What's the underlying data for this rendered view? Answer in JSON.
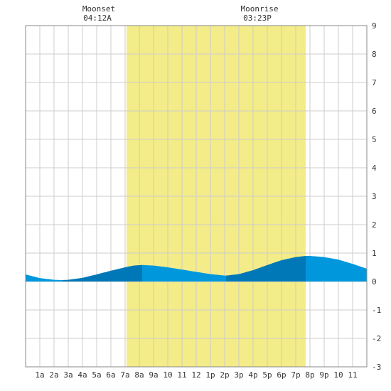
{
  "annotations": {
    "moonset": {
      "label": "Moonset",
      "time": "04:12A",
      "hour": 4.2
    },
    "moonrise": {
      "label": "Moonrise",
      "time": "03:23P",
      "hour": 15.383
    }
  },
  "chart_data": {
    "type": "area",
    "title": "",
    "xlabel": "",
    "ylabel": "",
    "x_range": [
      0,
      24
    ],
    "ylim": [
      -3,
      9
    ],
    "grid": true,
    "x_tick_labels": [
      "1a",
      "2a",
      "3a",
      "4a",
      "5a",
      "6a",
      "7a",
      "8a",
      "9a",
      "10",
      "11",
      "12",
      "1p",
      "2p",
      "3p",
      "4p",
      "5p",
      "6p",
      "7p",
      "8p",
      "9p",
      "10",
      "11"
    ],
    "y_tick_labels": [
      "9",
      "8",
      "7",
      "6",
      "5",
      "4",
      "3",
      "2",
      "1",
      "0",
      "-1",
      "-2",
      "-3"
    ],
    "daylight": {
      "start_hour": 7.1,
      "end_hour": 19.7
    },
    "x": [
      0,
      1,
      2,
      2.6,
      3,
      4,
      5,
      6,
      7,
      7.6,
      8.2,
      9,
      10,
      11,
      12,
      13,
      14,
      14.1,
      15,
      16,
      17,
      18,
      19,
      19.7,
      20,
      21,
      22,
      23,
      24
    ],
    "y": [
      0.25,
      0.12,
      0.06,
      0.05,
      0.06,
      0.13,
      0.25,
      0.38,
      0.5,
      0.56,
      0.58,
      0.56,
      0.5,
      0.42,
      0.34,
      0.26,
      0.21,
      0.21,
      0.26,
      0.4,
      0.58,
      0.75,
      0.86,
      0.9,
      0.9,
      0.86,
      0.77,
      0.62,
      0.45
    ],
    "tide_segments": [
      {
        "phase": "falling",
        "start_hour": 0,
        "end_hour": 2.6
      },
      {
        "phase": "rising",
        "start_hour": 2.6,
        "end_hour": 8.2
      },
      {
        "phase": "falling",
        "start_hour": 8.2,
        "end_hour": 14.1
      },
      {
        "phase": "rising",
        "start_hour": 14.1,
        "end_hour": 19.7
      },
      {
        "phase": "falling",
        "start_hour": 19.7,
        "end_hour": 24
      }
    ],
    "colors": {
      "daylight": "#f3ec88",
      "rising": "#0078b8",
      "falling": "#0097dd",
      "grid": "#cccccc",
      "border": "#888888"
    }
  }
}
